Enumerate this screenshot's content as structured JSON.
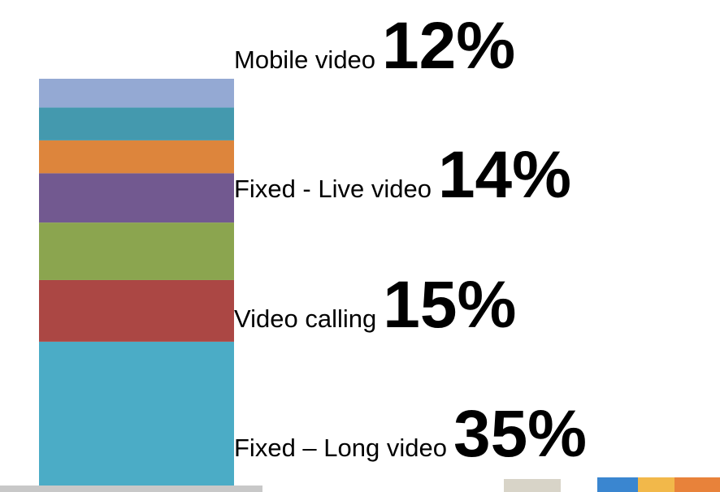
{
  "chart_data": {
    "type": "stacked-bar",
    "series": [
      {
        "name": "Fixed – Long video",
        "color": "#4bacc6",
        "values": [
          35
        ],
        "value_labels": [
          "35%"
        ]
      },
      {
        "name": "Video calling",
        "color": "#ab4744",
        "values": [
          15
        ],
        "value_labels": [
          "15%"
        ]
      },
      {
        "name": "Fixed - Live video",
        "color": "#8ba54f",
        "values": [
          14
        ],
        "value_labels": [
          "14%"
        ]
      },
      {
        "name": "Mobile video",
        "color": "#725990",
        "values": [
          12
        ],
        "value_labels": [
          "12%"
        ]
      },
      {
        "name": null,
        "color": "#dd853c",
        "values": [
          8
        ]
      },
      {
        "name": null,
        "color": "#4499ae",
        "values": [
          8
        ]
      },
      {
        "name": null,
        "color": "#94a9d3",
        "values": [
          7
        ]
      }
    ]
  }
}
